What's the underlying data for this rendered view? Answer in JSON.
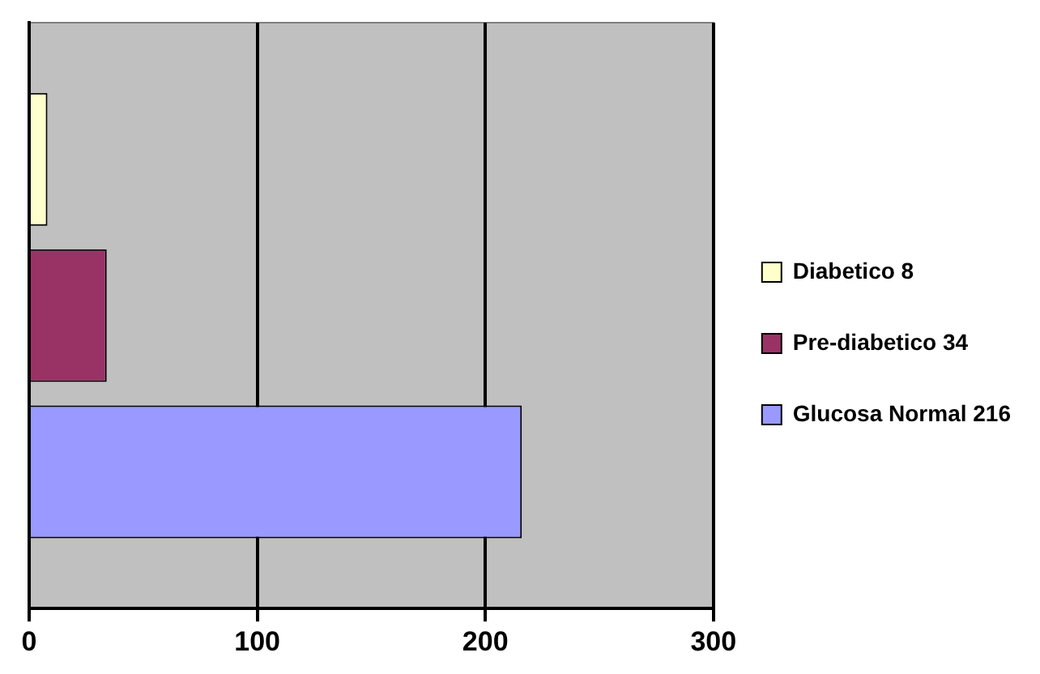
{
  "chart_data": {
    "type": "bar",
    "orientation": "horizontal",
    "categories": [
      null
    ],
    "series": [
      {
        "name": "Diabetico 8",
        "color": "#ffffcc",
        "values": [
          8
        ]
      },
      {
        "name": "Pre-diabetico 34",
        "color": "#993366",
        "values": [
          34
        ]
      },
      {
        "name": "Glucosa Normal 216",
        "color": "#9999ff",
        "values": [
          216
        ]
      }
    ],
    "xlim": [
      0,
      300
    ],
    "xticks": [
      0,
      100,
      200,
      300
    ],
    "grid": "x",
    "legend": "right"
  }
}
